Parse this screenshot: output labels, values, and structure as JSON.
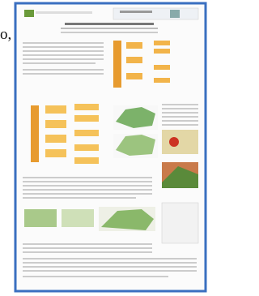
{
  "page": {
    "fragment": "o,"
  }
}
